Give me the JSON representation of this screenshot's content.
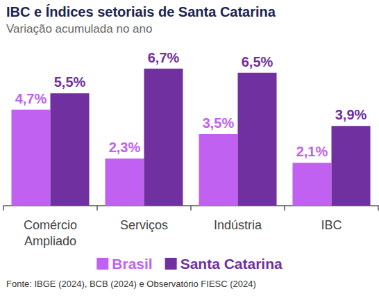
{
  "chart_data": {
    "type": "bar",
    "title": "IBC e Índices setoriais de Santa Catarina",
    "subtitle": "Variação acumulada no ano",
    "source": "Fonte: IBGE (2024), BCB (2024) e Observatório FIESC (2024)",
    "categories": [
      "Comércio\nAmpliado",
      "Serviços",
      "Indústria",
      "IBC"
    ],
    "series": [
      {
        "name": "Brasil",
        "color": "#c061f2",
        "values": [
          4.7,
          2.3,
          3.5,
          2.1
        ],
        "value_labels": [
          "4,7%",
          "2,3%",
          "3,5%",
          "2,1%"
        ]
      },
      {
        "name": "Santa Catarina",
        "color": "#7030a0",
        "values": [
          5.5,
          6.7,
          6.5,
          3.9
        ],
        "value_labels": [
          "5,5%",
          "6,7%",
          "6,5%",
          "3,9%"
        ]
      }
    ],
    "ylim": [
      0,
      7
    ],
    "yticks": [
      0,
      7
    ],
    "grid": false,
    "legend": "bottom",
    "data_labels": true,
    "tick_labels": "x"
  }
}
